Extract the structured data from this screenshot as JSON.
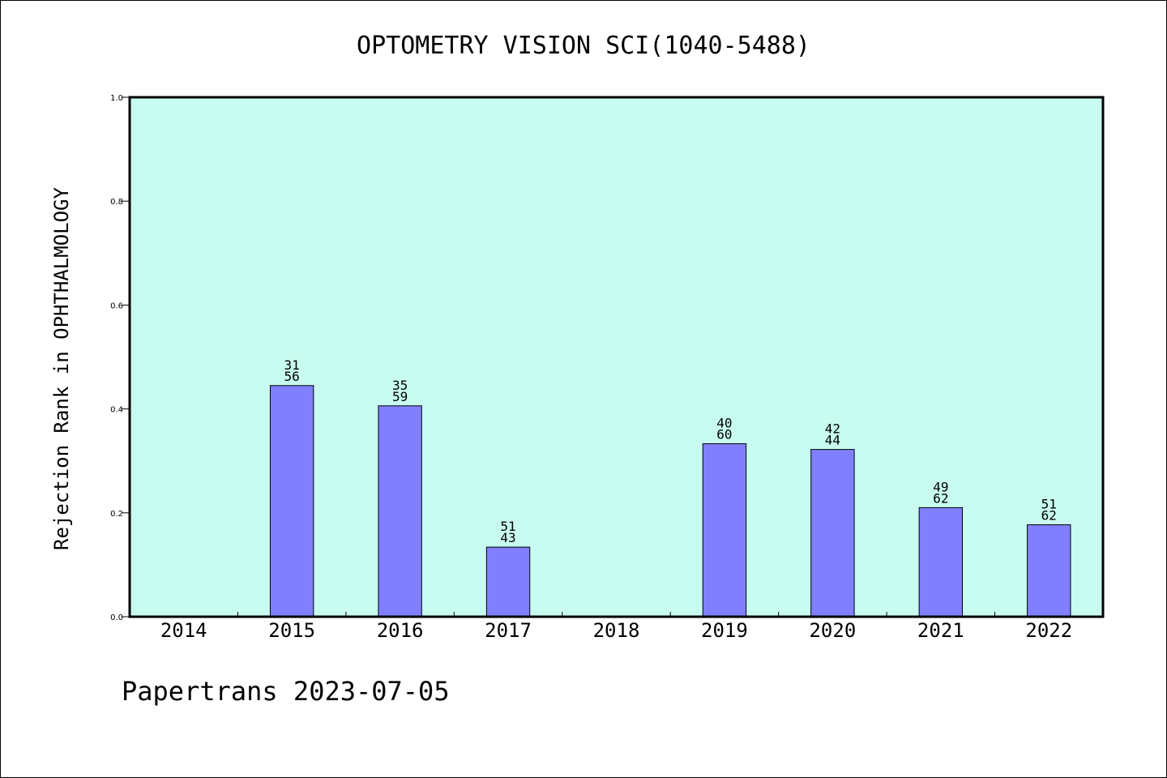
{
  "chart_data": {
    "type": "bar",
    "title": "OPTOMETRY VISION SCI(1040-5488)",
    "ylabel": "Rejection Rank in OPHTHALMOLOGY",
    "xlabel": "",
    "ylim": [
      0,
      1.0
    ],
    "yticks": [
      0.0,
      0.2,
      0.4,
      0.6,
      0.8,
      1.0
    ],
    "ytick_labels": [
      "0.0",
      "0.2",
      "0.4",
      "0.6",
      "0.8",
      "1.0"
    ],
    "categories": [
      "2014",
      "2015",
      "2016",
      "2017",
      "2018",
      "2019",
      "2020",
      "2021",
      "2022"
    ],
    "values": [
      null,
      0.445,
      0.406,
      0.134,
      null,
      0.333,
      0.322,
      0.21,
      0.177
    ],
    "label_top": [
      "",
      "31",
      "35",
      "51",
      "",
      "40",
      "42",
      "49",
      "51"
    ],
    "label_bottom": [
      "",
      "56",
      "59",
      "43",
      "",
      "60",
      "44",
      "62",
      "62"
    ],
    "bar_color": "#8080ff",
    "plot_background": "#c8fcf0",
    "grid": false,
    "legend": "none"
  },
  "footer": "Papertrans 2023-07-05"
}
